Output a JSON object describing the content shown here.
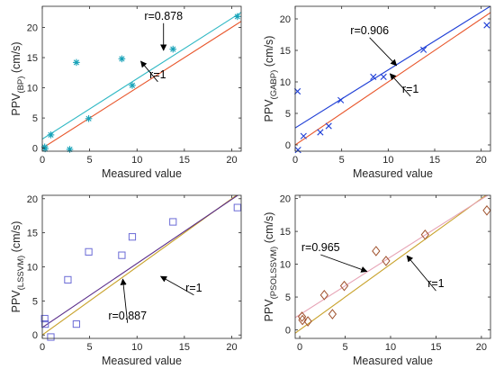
{
  "chart_data": [
    {
      "id": "bp",
      "type": "scatter",
      "xlabel": "Measured value",
      "ylabel": {
        "main": "PPV",
        "sub": "(BP)",
        "unit": " (cm/s)"
      },
      "xlim": [
        0,
        21
      ],
      "ylim": [
        -0.5,
        23.5
      ],
      "xticks": [
        0,
        5,
        10,
        15,
        20
      ],
      "yticks": [
        0,
        5,
        10,
        15,
        20
      ],
      "marker": "asterisk",
      "marker_color": "#17a2b8",
      "points": [
        [
          0.25,
          0.2
        ],
        [
          0.3,
          -0.1
        ],
        [
          0.9,
          2.2
        ],
        [
          2.9,
          -0.2
        ],
        [
          3.6,
          14.2
        ],
        [
          4.9,
          4.9
        ],
        [
          8.4,
          14.8
        ],
        [
          9.5,
          10.4
        ],
        [
          13.8,
          16.4
        ],
        [
          20.6,
          21.8
        ]
      ],
      "fit_line": {
        "label": "r=0.878",
        "color": "#2fb8c4",
        "intercept": 1.5,
        "slope": 1.0
      },
      "identity_line": {
        "label": "r=1",
        "color": "#e8552a"
      },
      "annotations": [
        {
          "text": "r=0.878",
          "label_at": [
            12.8,
            21.3
          ],
          "arrow_to": [
            12.8,
            16.2
          ]
        },
        {
          "text": "r=1",
          "label_at": [
            12.2,
            11.6
          ],
          "arrow_to": [
            10.4,
            14.4
          ]
        }
      ]
    },
    {
      "id": "gabp",
      "type": "scatter",
      "xlabel": "Measured value",
      "ylabel": {
        "main": "PPV",
        "sub": "(GABP)",
        "unit": " (cm/s)"
      },
      "xlim": [
        0,
        21
      ],
      "ylim": [
        -1,
        22
      ],
      "xticks": [
        0,
        5,
        10,
        15,
        20
      ],
      "yticks": [
        0,
        5,
        10,
        15,
        20
      ],
      "marker": "x",
      "marker_color": "#1f3fd6",
      "points": [
        [
          0.25,
          8.5
        ],
        [
          0.3,
          -0.8
        ],
        [
          0.9,
          1.4
        ],
        [
          2.7,
          2.0
        ],
        [
          3.6,
          3.0
        ],
        [
          4.9,
          7.1
        ],
        [
          8.4,
          10.8
        ],
        [
          9.5,
          10.8
        ],
        [
          13.8,
          15.1
        ],
        [
          20.6,
          19.0
        ]
      ],
      "fit_line": {
        "label": "r=0.906",
        "color": "#1f3fd6",
        "intercept": 2.7,
        "slope": 0.92
      },
      "identity_line": {
        "label": "r=1",
        "color": "#e8552a"
      },
      "annotations": [
        {
          "text": "r=0.906",
          "label_at": [
            8.0,
            17.6
          ],
          "arrow_to": [
            10.9,
            12.6
          ]
        },
        {
          "text": "r=1",
          "label_at": [
            12.4,
            8.3
          ],
          "arrow_to": [
            10.2,
            11.3
          ]
        }
      ]
    },
    {
      "id": "lssvm",
      "type": "scatter",
      "xlabel": "Measured value",
      "ylabel": {
        "main": "PPV",
        "sub": "(LSSVM)",
        "unit": " (cm/s)"
      },
      "xlim": [
        0,
        21
      ],
      "ylim": [
        -0.5,
        20.5
      ],
      "xticks": [
        0,
        5,
        10,
        15,
        20
      ],
      "yticks": [
        0,
        5,
        10,
        15,
        20
      ],
      "marker": "square",
      "marker_color": "#6b6bd6",
      "points": [
        [
          0.25,
          2.4
        ],
        [
          0.3,
          1.6
        ],
        [
          0.9,
          -0.3
        ],
        [
          2.7,
          8.1
        ],
        [
          3.6,
          1.6
        ],
        [
          4.9,
          12.2
        ],
        [
          8.4,
          11.7
        ],
        [
          9.5,
          14.4
        ],
        [
          13.8,
          16.6
        ],
        [
          20.6,
          18.7
        ]
      ],
      "fit_line": {
        "label": "r=0.887",
        "color": "#5a2d8a",
        "intercept": 1.1,
        "slope": 0.94
      },
      "identity_line": {
        "label": "r=1",
        "color": "#c8a22a"
      },
      "annotations": [
        {
          "text": "r=1",
          "label_at": [
            16.0,
            6.4
          ],
          "arrow_to": [
            12.5,
            8.6
          ]
        },
        {
          "text": "r=0.887",
          "label_at": [
            9.0,
            2.3
          ],
          "arrow_to": [
            8.5,
            8.2
          ]
        }
      ]
    },
    {
      "id": "psolssvm",
      "type": "scatter",
      "xlabel": "Measured value",
      "ylabel": {
        "main": "PPV",
        "sub": "(PSOLSSVM)",
        "unit": " (cm/s)"
      },
      "xlim": [
        -0.5,
        21
      ],
      "ylim": [
        -1.3,
        20.5
      ],
      "xticks": [
        0,
        5,
        10,
        15,
        20
      ],
      "yticks": [
        0,
        5,
        10,
        15,
        20
      ],
      "marker": "diamond",
      "marker_color": "#a0522d",
      "points": [
        [
          0.25,
          2.0
        ],
        [
          0.3,
          1.5
        ],
        [
          0.9,
          1.3
        ],
        [
          2.7,
          5.3
        ],
        [
          3.6,
          2.4
        ],
        [
          4.9,
          6.7
        ],
        [
          8.4,
          12.0
        ],
        [
          9.5,
          10.5
        ],
        [
          13.8,
          14.5
        ],
        [
          20.6,
          18.2
        ]
      ],
      "fit_line": {
        "label": "r=0.965",
        "color": "#e6a2b4",
        "intercept": 2.3,
        "slope": 0.88
      },
      "identity_line": {
        "label": "r=1",
        "color": "#c8a22a"
      },
      "annotations": [
        {
          "text": "r=0.965",
          "label_at": [
            2.3,
            12.0
          ],
          "arrow_to": [
            7.4,
            8.9
          ]
        },
        {
          "text": "r=1",
          "label_at": [
            15.0,
            6.5
          ],
          "arrow_to": [
            11.8,
            11.3
          ]
        }
      ]
    }
  ]
}
